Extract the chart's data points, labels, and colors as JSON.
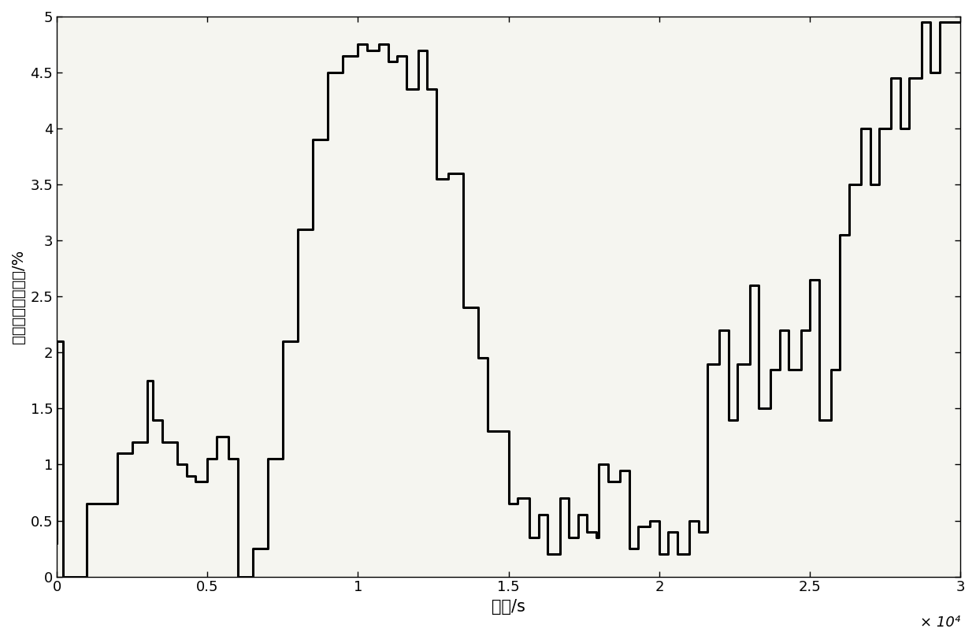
{
  "x": [
    0,
    200,
    500,
    1000,
    1500,
    2000,
    2500,
    3000,
    3200,
    3500,
    3700,
    4000,
    4300,
    4600,
    5000,
    5300,
    5700,
    6000,
    6500,
    7000,
    7500,
    8000,
    8500,
    9000,
    9500,
    10000,
    10300,
    10700,
    11000,
    11300,
    11600,
    12000,
    12300,
    12600,
    13000,
    13200,
    13500,
    14000,
    14300,
    14700,
    15000,
    15300,
    15700,
    16000,
    16300,
    16700,
    17000,
    17300,
    17600,
    17900,
    18000,
    18300,
    18700,
    19000,
    19300,
    19700,
    20000,
    20300,
    20600,
    21000,
    21300,
    21600,
    22000,
    22300,
    22600,
    23000,
    23300,
    23700,
    24000,
    24300,
    24700,
    25000,
    25300,
    25700,
    26000,
    26300,
    26700,
    27000,
    27300,
    27700,
    28000,
    28300,
    28700,
    29000,
    29300,
    29700,
    30000
  ],
  "y": [
    0.3,
    2.1,
    0.0,
    0.0,
    0.65,
    0.65,
    1.1,
    1.2,
    1.75,
    1.4,
    1.2,
    1.2,
    1.0,
    0.9,
    0.85,
    1.05,
    1.25,
    1.05,
    0.0,
    0.25,
    1.05,
    2.1,
    3.1,
    3.9,
    4.5,
    4.65,
    4.75,
    4.7,
    4.75,
    4.6,
    4.65,
    4.35,
    4.7,
    4.35,
    3.55,
    3.6,
    3.6,
    2.4,
    1.95,
    1.3,
    1.3,
    0.65,
    0.7,
    0.35,
    0.55,
    0.2,
    0.7,
    0.35,
    0.55,
    0.4,
    0.35,
    1.0,
    0.85,
    0.95,
    0.25,
    0.45,
    0.5,
    0.2,
    0.4,
    0.2,
    0.5,
    0.4,
    1.9,
    2.2,
    1.4,
    1.9,
    2.6,
    1.5,
    1.85,
    2.2,
    1.85,
    2.2,
    2.65,
    1.4,
    1.85,
    3.05,
    3.5,
    4.0,
    3.5,
    4.0,
    4.45,
    4.0,
    4.45,
    4.95,
    4.5,
    4.95,
    4.95
  ],
  "xlabel": "时间/s",
  "ylabel": "容量的百分比误差/%",
  "xlim": [
    0,
    30000
  ],
  "ylim": [
    0,
    5
  ],
  "xticks": [
    0,
    5000,
    10000,
    15000,
    20000,
    25000,
    30000
  ],
  "xticklabels": [
    "0",
    "0.5",
    "1",
    "1.5",
    "2",
    "2.5",
    "3"
  ],
  "yticks": [
    0,
    0.5,
    1.0,
    1.5,
    2.0,
    2.5,
    3.0,
    3.5,
    4.0,
    4.5,
    5.0
  ],
  "yticklabels": [
    "0",
    "0.5",
    "1",
    "1.5",
    "2",
    "2.5",
    "3",
    "3.5",
    "4",
    "4.5",
    "5"
  ],
  "x_scale_label": "× 10⁴",
  "line_color": "#000000",
  "line_width": 2.2,
  "background_color": "#ffffff",
  "xlabel_fontsize": 15,
  "ylabel_fontsize": 14,
  "tick_fontsize": 13
}
